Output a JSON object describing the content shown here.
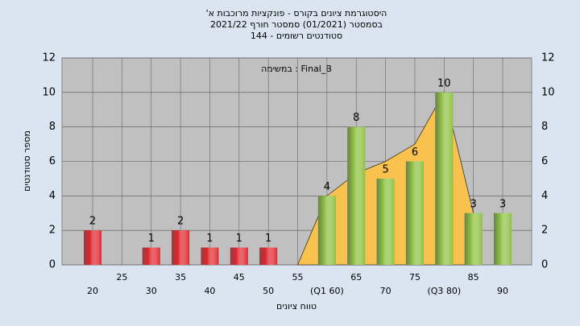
{
  "chart_data": {
    "type": "bar",
    "title": [
      "'היסטוגרמת ציונים בקורס - פונקציות מרוכבות א",
      "בסמסטר  (01/2021)  סמסטר חורף 2021/22",
      "144 - סטודנטים רשומים"
    ],
    "annotation": "במשימה : Final_B",
    "xlabel": "טווח ציונים",
    "ylabel": "מספר סטודנטים",
    "categories": [
      "20",
      "25",
      "30",
      "35",
      "40",
      "45",
      "50",
      "55",
      "(Q1 60)",
      "65",
      "70",
      "75",
      "(Q3 80)",
      "85",
      "90"
    ],
    "values": [
      2,
      0,
      1,
      2,
      1,
      1,
      1,
      0,
      4,
      8,
      5,
      6,
      10,
      3,
      3
    ],
    "colors": [
      "#e0242b",
      "#e0242b",
      "#e0242b",
      "#e0242b",
      "#e0242b",
      "#e0242b",
      "#e0242b",
      "#e0242b",
      "#8cc040",
      "#8cc040",
      "#8cc040",
      "#8cc040",
      "#8cc040",
      "#8cc040",
      "#8cc040"
    ],
    "overlay": {
      "color": "#f9c24e",
      "values": [
        null,
        null,
        null,
        null,
        null,
        null,
        null,
        0,
        4,
        5.3,
        6,
        7,
        10,
        3,
        null
      ]
    },
    "ylim": [
      0,
      12
    ],
    "yticks": [
      0,
      2,
      4,
      6,
      8,
      10,
      12
    ],
    "grid": true
  }
}
